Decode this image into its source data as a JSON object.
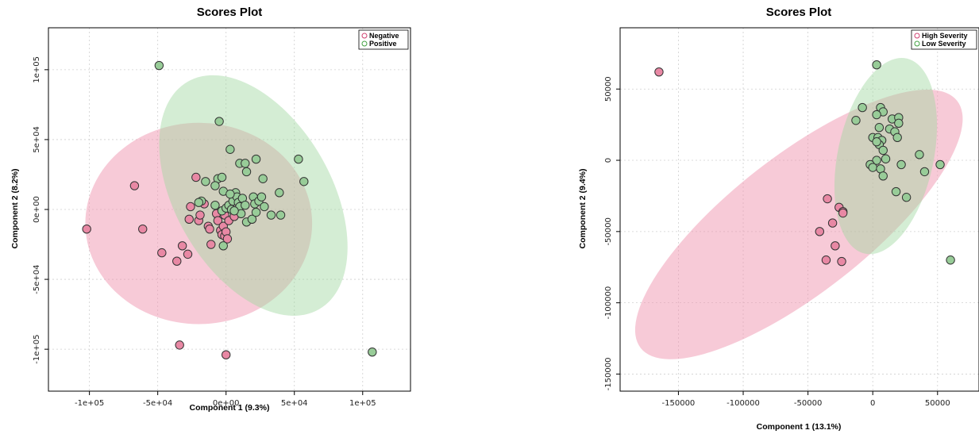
{
  "chart_data": [
    {
      "type": "scatter",
      "title": "Scores Plot",
      "xlabel": "Component 1 (9.3%)",
      "ylabel": "Component 2 (8.2%)",
      "xlim": [
        -130000,
        135000
      ],
      "ylim": [
        -130000,
        130000
      ],
      "xticks": [
        -100000,
        -50000,
        0,
        50000,
        100000
      ],
      "xtick_labels": [
        "-1e+05",
        "-5e+04",
        "0e+00",
        "5e+04",
        "1e+05"
      ],
      "yticks": [
        -100000,
        -50000,
        0,
        50000,
        100000
      ],
      "ytick_labels": [
        "-1e+05",
        "-5e+04",
        "0e+00",
        "5e+04",
        "1e+05"
      ],
      "grid": true,
      "legend_position": "top-right",
      "series": [
        {
          "name": "Negative",
          "color": "#e8a0b4",
          "points": [
            [
              -102000,
              -14000
            ],
            [
              -67000,
              17000
            ],
            [
              -61000,
              -14000
            ],
            [
              -47000,
              -31000
            ],
            [
              -36000,
              -37000
            ],
            [
              -34000,
              -97000
            ],
            [
              -32000,
              -26000
            ],
            [
              -28000,
              -32000
            ],
            [
              -27000,
              -7000
            ],
            [
              -26000,
              2000
            ],
            [
              -22000,
              23000
            ],
            [
              -20000,
              -8000
            ],
            [
              -19000,
              -4000
            ],
            [
              -16000,
              4000
            ],
            [
              -13000,
              -12000
            ],
            [
              -12000,
              -14000
            ],
            [
              -11000,
              -25000
            ],
            [
              -7000,
              -3000
            ],
            [
              -6000,
              -8000
            ],
            [
              -4000,
              -15000
            ],
            [
              -3000,
              -18000
            ],
            [
              -2000,
              -12000
            ],
            [
              -1000,
              -19000
            ],
            [
              -1000,
              -4000
            ],
            [
              0,
              -16000
            ],
            [
              1000,
              -21000
            ],
            [
              2000,
              -8000
            ],
            [
              6000,
              -5000
            ],
            [
              0,
              -104000
            ]
          ],
          "ellipse": {
            "cx": -20000,
            "cy": -10000,
            "rx": 83000,
            "ry": 72000,
            "angle": 0
          }
        },
        {
          "name": "Positive",
          "color": "#b8e0b8",
          "points": [
            [
              -49000,
              103000
            ],
            [
              -5000,
              63000
            ],
            [
              3000,
              43000
            ],
            [
              10000,
              33000
            ],
            [
              14000,
              33000
            ],
            [
              22000,
              36000
            ],
            [
              53000,
              36000
            ],
            [
              57000,
              20000
            ],
            [
              15000,
              27000
            ],
            [
              27000,
              22000
            ],
            [
              -6000,
              22000
            ],
            [
              -3000,
              23000
            ],
            [
              -15000,
              20000
            ],
            [
              -8000,
              17000
            ],
            [
              -2000,
              13000
            ],
            [
              -18000,
              6000
            ],
            [
              -20000,
              5000
            ],
            [
              -8000,
              3000
            ],
            [
              -3000,
              -1000
            ],
            [
              0,
              1000
            ],
            [
              2000,
              3000
            ],
            [
              4000,
              0
            ],
            [
              5000,
              6000
            ],
            [
              7000,
              12000
            ],
            [
              8000,
              9000
            ],
            [
              9000,
              5000
            ],
            [
              10000,
              2000
            ],
            [
              11000,
              -3000
            ],
            [
              12000,
              8000
            ],
            [
              14000,
              3000
            ],
            [
              15000,
              -9000
            ],
            [
              19000,
              -7000
            ],
            [
              20000,
              9000
            ],
            [
              21000,
              4000
            ],
            [
              22000,
              -2000
            ],
            [
              24000,
              6000
            ],
            [
              26000,
              9000
            ],
            [
              28000,
              2000
            ],
            [
              33000,
              -4000
            ],
            [
              39000,
              12000
            ],
            [
              40000,
              -4000
            ],
            [
              -2000,
              -26000
            ],
            [
              107000,
              -102000
            ],
            [
              6000,
              -1000
            ],
            [
              3000,
              11000
            ]
          ],
          "ellipse": {
            "cx": 20000,
            "cy": 10000,
            "rx": 57000,
            "ry": 94000,
            "angle": -30
          }
        }
      ]
    },
    {
      "type": "scatter",
      "title": "Scores Plot",
      "xlabel": "Component 1 (13.1%)",
      "ylabel": "Component 2 (9.4%)",
      "xlim": [
        -195000,
        82000
      ],
      "ylim": [
        -162000,
        93000
      ],
      "xticks": [
        -150000,
        -100000,
        -50000,
        0,
        50000
      ],
      "xtick_labels": [
        "-150000",
        "-100000",
        "-50000",
        "0",
        "50000"
      ],
      "yticks": [
        -150000,
        -100000,
        -50000,
        0,
        50000
      ],
      "ytick_labels": [
        "-150000",
        "-100000",
        "-50000",
        "0",
        "50000"
      ],
      "grid": true,
      "legend_position": "top-right",
      "series": [
        {
          "name": "High Severity",
          "color": "#e8a0b4",
          "points": [
            [
              -165000,
              62000
            ],
            [
              -35000,
              -27000
            ],
            [
              -26000,
              -33000
            ],
            [
              -23000,
              -36000
            ],
            [
              -23000,
              -37000
            ],
            [
              -31000,
              -44000
            ],
            [
              -41000,
              -50000
            ],
            [
              -29000,
              -60000
            ],
            [
              -36000,
              -70000
            ],
            [
              -24000,
              -71000
            ]
          ],
          "ellipse": {
            "cx": -57000,
            "cy": -45000,
            "rx": 155000,
            "ry": 48000,
            "angle": -38
          }
        },
        {
          "name": "Low Severity",
          "color": "#b8e0b8",
          "points": [
            [
              3000,
              67000
            ],
            [
              -8000,
              37000
            ],
            [
              6000,
              37000
            ],
            [
              8000,
              34000
            ],
            [
              3000,
              32000
            ],
            [
              -13000,
              28000
            ],
            [
              15000,
              29000
            ],
            [
              20000,
              30000
            ],
            [
              20000,
              26000
            ],
            [
              5000,
              23000
            ],
            [
              13000,
              22000
            ],
            [
              17000,
              20000
            ],
            [
              0,
              16000
            ],
            [
              4000,
              16000
            ],
            [
              19000,
              16000
            ],
            [
              7000,
              14000
            ],
            [
              5000,
              11000
            ],
            [
              8000,
              7000
            ],
            [
              10000,
              1000
            ],
            [
              3000,
              0
            ],
            [
              -2000,
              -3000
            ],
            [
              0,
              -5000
            ],
            [
              22000,
              -3000
            ],
            [
              36000,
              4000
            ],
            [
              52000,
              -3000
            ],
            [
              6000,
              -6000
            ],
            [
              8000,
              -11000
            ],
            [
              40000,
              -8000
            ],
            [
              18000,
              -22000
            ],
            [
              26000,
              -26000
            ],
            [
              60000,
              -70000
            ],
            [
              3000,
              13000
            ]
          ],
          "ellipse": {
            "cx": 10000,
            "cy": 3000,
            "rx": 37000,
            "ry": 70000,
            "angle": 12
          }
        }
      ]
    }
  ]
}
